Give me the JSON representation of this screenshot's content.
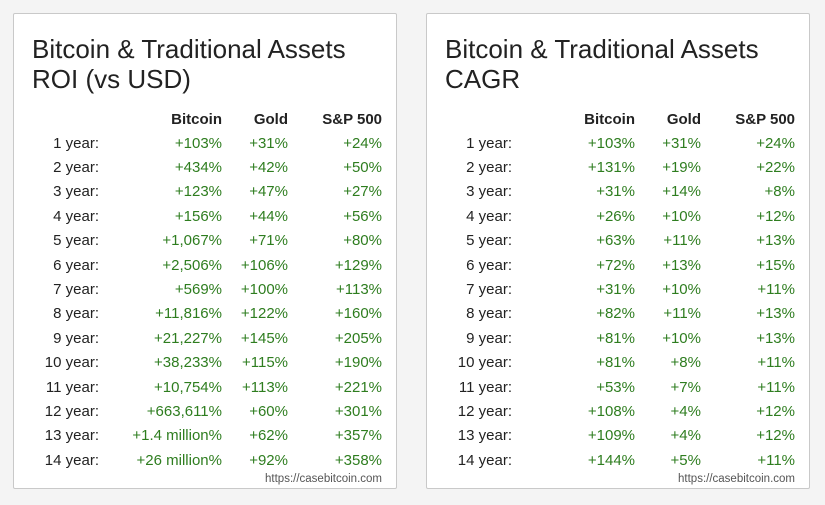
{
  "headers": {
    "label": "",
    "bitcoin": "Bitcoin",
    "gold": "Gold",
    "sp500": "S&P 500"
  },
  "source": "https://casebitcoin.com",
  "colors": {
    "positive": "#2e7d1f",
    "text": "#222222"
  },
  "tables": [
    {
      "title_line1": "Bitcoin & Traditional Assets",
      "title_line2": "ROI (vs USD)",
      "rows": [
        {
          "label": "1 year:",
          "bitcoin": "+103%",
          "gold": "+31%",
          "sp500": "+24%"
        },
        {
          "label": "2 year:",
          "bitcoin": "+434%",
          "gold": "+42%",
          "sp500": "+50%"
        },
        {
          "label": "3 year:",
          "bitcoin": "+123%",
          "gold": "+47%",
          "sp500": "+27%"
        },
        {
          "label": "4 year:",
          "bitcoin": "+156%",
          "gold": "+44%",
          "sp500": "+56%"
        },
        {
          "label": "5 year:",
          "bitcoin": "+1,067%",
          "gold": "+71%",
          "sp500": "+80%"
        },
        {
          "label": "6 year:",
          "bitcoin": "+2,506%",
          "gold": "+106%",
          "sp500": "+129%"
        },
        {
          "label": "7 year:",
          "bitcoin": "+569%",
          "gold": "+100%",
          "sp500": "+113%"
        },
        {
          "label": "8 year:",
          "bitcoin": "+11,816%",
          "gold": "+122%",
          "sp500": "+160%"
        },
        {
          "label": "9 year:",
          "bitcoin": "+21,227%",
          "gold": "+145%",
          "sp500": "+205%"
        },
        {
          "label": "10 year:",
          "bitcoin": "+38,233%",
          "gold": "+115%",
          "sp500": "+190%"
        },
        {
          "label": "11 year:",
          "bitcoin": "+10,754%",
          "gold": "+113%",
          "sp500": "+221%"
        },
        {
          "label": "12 year:",
          "bitcoin": "+663,611%",
          "gold": "+60%",
          "sp500": "+301%"
        },
        {
          "label": "13 year:",
          "bitcoin": "+1.4 million%",
          "gold": "+62%",
          "sp500": "+357%"
        },
        {
          "label": "14 year:",
          "bitcoin": "+26 million%",
          "gold": "+92%",
          "sp500": "+358%"
        }
      ]
    },
    {
      "title_line1": "Bitcoin & Traditional Assets",
      "title_line2": "CAGR",
      "rows": [
        {
          "label": "1 year:",
          "bitcoin": "+103%",
          "gold": "+31%",
          "sp500": "+24%"
        },
        {
          "label": "2 year:",
          "bitcoin": "+131%",
          "gold": "+19%",
          "sp500": "+22%"
        },
        {
          "label": "3 year:",
          "bitcoin": "+31%",
          "gold": "+14%",
          "sp500": "+8%"
        },
        {
          "label": "4 year:",
          "bitcoin": "+26%",
          "gold": "+10%",
          "sp500": "+12%"
        },
        {
          "label": "5 year:",
          "bitcoin": "+63%",
          "gold": "+11%",
          "sp500": "+13%"
        },
        {
          "label": "6 year:",
          "bitcoin": "+72%",
          "gold": "+13%",
          "sp500": "+15%"
        },
        {
          "label": "7 year:",
          "bitcoin": "+31%",
          "gold": "+10%",
          "sp500": "+11%"
        },
        {
          "label": "8 year:",
          "bitcoin": "+82%",
          "gold": "+11%",
          "sp500": "+13%"
        },
        {
          "label": "9 year:",
          "bitcoin": "+81%",
          "gold": "+10%",
          "sp500": "+13%"
        },
        {
          "label": "10 year:",
          "bitcoin": "+81%",
          "gold": "+8%",
          "sp500": "+11%"
        },
        {
          "label": "11 year:",
          "bitcoin": "+53%",
          "gold": "+7%",
          "sp500": "+11%"
        },
        {
          "label": "12 year:",
          "bitcoin": "+108%",
          "gold": "+4%",
          "sp500": "+12%"
        },
        {
          "label": "13 year:",
          "bitcoin": "+109%",
          "gold": "+4%",
          "sp500": "+12%"
        },
        {
          "label": "14 year:",
          "bitcoin": "+144%",
          "gold": "+5%",
          "sp500": "+11%"
        }
      ]
    }
  ]
}
